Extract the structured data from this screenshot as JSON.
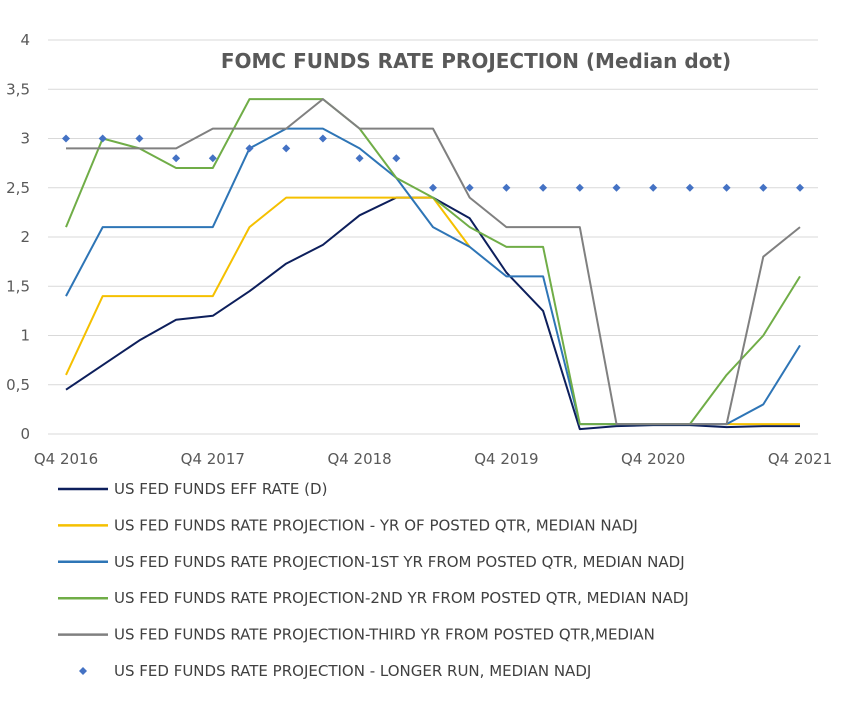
{
  "chart_data": {
    "type": "line",
    "title": "FOMC FUNDS RATE PROJECTION (Median dot)",
    "xlabel": "",
    "ylabel": "",
    "ylim": [
      0,
      4
    ],
    "yticks": [
      "0",
      "0,5",
      "1",
      "1,5",
      "2",
      "2,5",
      "3",
      "3,5",
      "4"
    ],
    "xticks": [
      "Q4 2016",
      "Q4 2017",
      "Q4 2018",
      "Q4 2019",
      "Q4 2020",
      "Q4 2021"
    ],
    "x": [
      "Q4 2016",
      "Q1 2017",
      "Q2 2017",
      "Q3 2017",
      "Q4 2017",
      "Q1 2018",
      "Q2 2018",
      "Q3 2018",
      "Q4 2018",
      "Q1 2019",
      "Q2 2019",
      "Q3 2019",
      "Q4 2019",
      "Q1 2020",
      "Q2 2020",
      "Q3 2020",
      "Q4 2020",
      "Q1 2021",
      "Q2 2021",
      "Q3 2021",
      "Q4 2021"
    ],
    "grid": true,
    "legend_position": "bottom",
    "series": [
      {
        "name": "US FED FUNDS EFF RATE (D)",
        "color": "#0d1f5c",
        "style": "line",
        "values": [
          0.45,
          0.7,
          0.95,
          1.16,
          1.2,
          1.45,
          1.73,
          1.92,
          2.22,
          2.4,
          2.4,
          2.19,
          1.64,
          1.25,
          0.05,
          0.08,
          0.09,
          0.09,
          0.07,
          0.08,
          0.08
        ]
      },
      {
        "name": "US FED FUNDS RATE PROJECTION - YR OF POSTED QTR, MEDIAN NADJ",
        "color": "#f5c000",
        "style": "line",
        "values": [
          0.6,
          1.4,
          1.4,
          1.4,
          1.4,
          2.1,
          2.4,
          2.4,
          2.4,
          2.4,
          2.4,
          1.9,
          null,
          null,
          null,
          null,
          null,
          null,
          0.1,
          0.1,
          0.1
        ]
      },
      {
        "name": "US FED FUNDS RATE PROJECTION-1ST YR FROM POSTED QTR, MEDIAN NADJ",
        "color": "#2e75b6",
        "style": "line",
        "values": [
          1.4,
          2.1,
          2.1,
          2.1,
          2.1,
          2.9,
          3.1,
          3.1,
          2.9,
          2.6,
          2.1,
          1.9,
          1.6,
          1.6,
          0.1,
          0.1,
          0.1,
          0.1,
          0.1,
          0.3,
          0.9
        ]
      },
      {
        "name": "US FED FUNDS RATE PROJECTION-2ND YR FROM POSTED QTR, MEDIAN NADJ",
        "color": "#70ad47",
        "style": "line",
        "values": [
          2.1,
          3.0,
          2.9,
          2.7,
          2.7,
          3.4,
          3.4,
          3.4,
          3.1,
          2.6,
          2.4,
          2.1,
          1.9,
          1.9,
          0.1,
          0.1,
          0.1,
          0.1,
          0.6,
          1.0,
          1.6
        ]
      },
      {
        "name": "US FED FUNDS RATE PROJECTION-THIRD YR FROM POSTED QTR,MEDIAN",
        "color": "#808080",
        "style": "line",
        "values": [
          2.9,
          2.9,
          2.9,
          2.9,
          3.1,
          3.1,
          3.1,
          3.4,
          3.1,
          3.1,
          3.1,
          2.4,
          2.1,
          2.1,
          2.1,
          0.1,
          0.1,
          0.1,
          0.1,
          1.8,
          2.1
        ]
      },
      {
        "name": "US FED FUNDS RATE PROJECTION - LONGER RUN, MEDIAN NADJ",
        "color": "#4472c4",
        "style": "marker",
        "values": [
          3.0,
          3.0,
          3.0,
          2.8,
          2.8,
          2.9,
          2.9,
          3.0,
          2.8,
          2.8,
          2.5,
          2.5,
          2.5,
          2.5,
          2.5,
          2.5,
          2.5,
          2.5,
          2.5,
          2.5,
          2.5
        ]
      }
    ]
  }
}
